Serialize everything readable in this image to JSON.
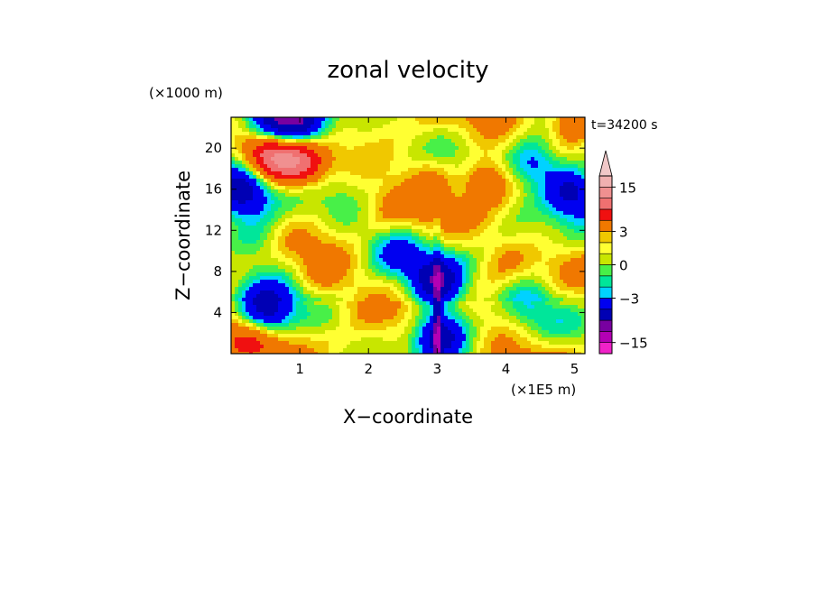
{
  "chart_data": {
    "type": "heatmap",
    "title": "zonal velocity",
    "xlabel": "X−coordinate",
    "ylabel": "Z−coordinate",
    "x_unit": "(×1E5 m)",
    "y_unit": "(×1000 m)",
    "time_label": "t=34200 s",
    "x_range": [
      0,
      5.15
    ],
    "y_range": [
      0,
      23
    ],
    "x_ticks": [
      1,
      2,
      3,
      4,
      5
    ],
    "x_tick_labels": [
      "1",
      "2",
      "3",
      "4",
      "5"
    ],
    "y_ticks": [
      4,
      8,
      12,
      16,
      20
    ],
    "y_tick_labels": [
      "4",
      "8",
      "12",
      "16",
      "20"
    ],
    "colorbar": {
      "levels": [
        -18,
        -15,
        -12,
        -9,
        -6,
        -3,
        -2,
        -1,
        0,
        1,
        2,
        3,
        6,
        9,
        12,
        15,
        18
      ],
      "colors": [
        "#f022c8",
        "#b400b4",
        "#7800a0",
        "#0000b4",
        "#0000f0",
        "#00d2ff",
        "#00e69a",
        "#48f048",
        "#c8e600",
        "#ffff32",
        "#f0c800",
        "#f07800",
        "#f01010",
        "#f07070",
        "#f09090",
        "#f0b0b0",
        "#f0c8c8"
      ],
      "extend_max": true,
      "tick_values": [
        15,
        3,
        0,
        -3,
        -15
      ],
      "tick_labels": [
        "15",
        "3",
        "0",
        "−3",
        "−15"
      ]
    },
    "field_features": [
      {
        "x": 0.55,
        "y": 19.5,
        "level": 9
      },
      {
        "x": 1.0,
        "y": 18.8,
        "level": 9
      },
      {
        "x": 0.15,
        "y": 16.0,
        "level": -9
      },
      {
        "x": 4.95,
        "y": 15.8,
        "level": -9
      },
      {
        "x": 4.4,
        "y": 18.5,
        "level": -6
      },
      {
        "x": 0.55,
        "y": 22.5,
        "level": -9
      },
      {
        "x": 1.0,
        "y": 21.8,
        "level": -9
      },
      {
        "x": 3.05,
        "y": 2.0,
        "level": -9
      },
      {
        "x": 3.0,
        "y": 7.0,
        "level": -9
      },
      {
        "x": 0.5,
        "y": 4.0,
        "level": -9
      },
      {
        "x": 3.7,
        "y": 17.0,
        "level": 6
      },
      {
        "x": 5.0,
        "y": 22.5,
        "level": 6
      },
      {
        "x": 0.4,
        "y": 11.0,
        "level": -3
      },
      {
        "x": 2.4,
        "y": 10.0,
        "level": -3
      },
      {
        "x": 4.3,
        "y": 5.0,
        "level": -3
      },
      {
        "x": 1.5,
        "y": 3.5,
        "level": -1
      },
      {
        "x": 3.5,
        "y": 4.0,
        "level": -1
      },
      {
        "x": 2.2,
        "y": 14.0,
        "level": 2
      },
      {
        "x": 1.3,
        "y": 7.0,
        "level": 2
      },
      {
        "x": 4.0,
        "y": 9.0,
        "level": 2
      },
      {
        "x": 0.3,
        "y": 1.5,
        "level": 3
      },
      {
        "x": 2.9,
        "y": 17.5,
        "level": 3
      }
    ]
  }
}
